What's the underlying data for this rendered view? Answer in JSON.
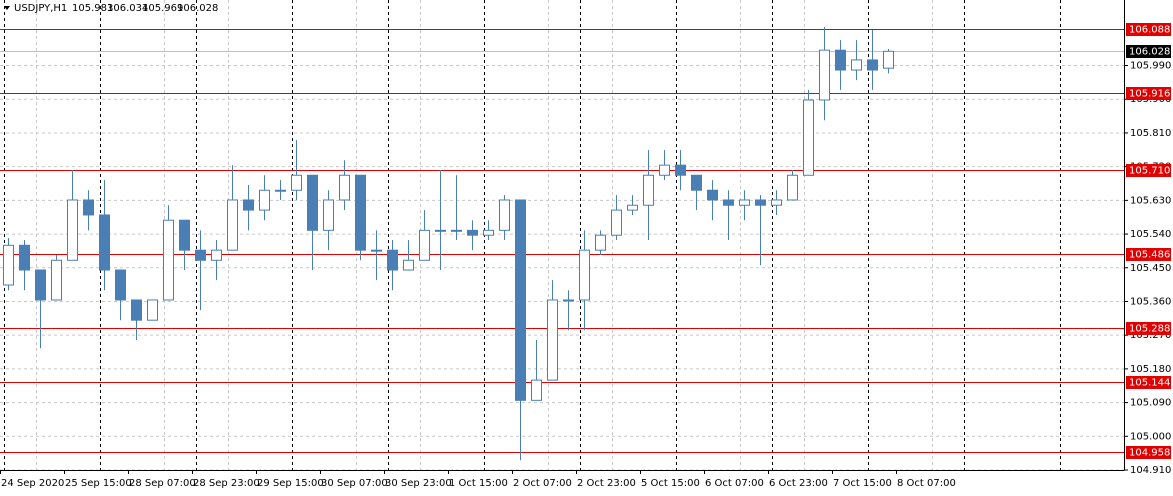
{
  "chart_data": {
    "type": "candlestick",
    "symbol": "USDJPY,H1",
    "ohlc": [
      105.983,
      106.034,
      105.969,
      106.028
    ],
    "color": "#4a7fb5",
    "level_color": "#e00000",
    "last_price": 106.028,
    "ylim": [
      104.91,
      106.165
    ],
    "yticks": [
      {
        "value": 105.99,
        "label": "105.990"
      },
      {
        "value": 105.9,
        "label": "105.900"
      },
      {
        "value": 105.81,
        "label": "105.810"
      },
      {
        "value": 105.72,
        "label": "105.720"
      },
      {
        "value": 105.63,
        "label": "105.630"
      },
      {
        "value": 105.54,
        "label": "105.540"
      },
      {
        "value": 105.45,
        "label": "105.450"
      },
      {
        "value": 105.36,
        "label": "105.360"
      },
      {
        "value": 105.27,
        "label": "105.270"
      },
      {
        "value": 105.18,
        "label": "105.180"
      },
      {
        "value": 105.09,
        "label": "105.090"
      },
      {
        "value": 105,
        "label": "105.000"
      },
      {
        "value": 104.91,
        "label": "104.910"
      }
    ],
    "levels": [
      106.088,
      105.916,
      {
        "value": 105.71,
        "label": "105.710"
      },
      105.486,
      105.288,
      105.144,
      104.958
    ],
    "x_labels": [
      "24 Sep 2020",
      "25 Sep 15:00",
      "28 Sep 07:00",
      "28 Sep 23:00",
      "29 Sep 15:00",
      "30 Sep 07:00",
      "30 Sep 23:00",
      "1 Oct 15:00",
      "2 Oct 07:00",
      "2 Oct 23:00",
      "5 Oct 15:00",
      "6 Oct 07:00",
      "6 Oct 23:00",
      "7 Oct 15:00",
      "8 Oct 07:00"
    ],
    "candles": [
      [
        105.404,
        105.529,
        105.39,
        105.51
      ],
      [
        105.51,
        105.524,
        105.39,
        105.444
      ],
      [
        105.444,
        105.444,
        105.235,
        105.364
      ],
      [
        105.364,
        105.484,
        105.364,
        105.47
      ],
      [
        105.47,
        105.711,
        105.47,
        105.631
      ],
      [
        105.631,
        105.657,
        105.55,
        105.591
      ],
      [
        105.591,
        105.684,
        105.39,
        105.444
      ],
      [
        105.444,
        105.444,
        105.31,
        105.364
      ],
      [
        105.364,
        105.364,
        105.257,
        105.31
      ],
      [
        105.31,
        105.364,
        105.31,
        105.364
      ],
      [
        105.364,
        105.617,
        105.364,
        105.577
      ],
      [
        105.577,
        105.577,
        105.444,
        105.497
      ],
      [
        105.497,
        105.55,
        105.337,
        105.47
      ],
      [
        105.47,
        105.524,
        105.417,
        105.497
      ],
      [
        105.497,
        105.724,
        105.497,
        105.631
      ],
      [
        105.631,
        105.671,
        105.55,
        105.604
      ],
      [
        105.604,
        105.697,
        105.577,
        105.657
      ],
      [
        105.657,
        105.684,
        105.631,
        105.657
      ],
      [
        105.657,
        105.791,
        105.631,
        105.697
      ],
      [
        105.697,
        105.697,
        105.444,
        105.55
      ],
      [
        105.55,
        105.657,
        105.497,
        105.631
      ],
      [
        105.631,
        105.737,
        105.604,
        105.697
      ],
      [
        105.697,
        105.697,
        105.47,
        105.497
      ],
      [
        105.497,
        105.55,
        105.417,
        105.497
      ],
      [
        105.497,
        105.524,
        105.39,
        105.444
      ],
      [
        105.444,
        105.524,
        105.444,
        105.47
      ],
      [
        105.47,
        105.604,
        105.47,
        105.55
      ],
      [
        105.55,
        105.711,
        105.444,
        105.55
      ],
      [
        105.55,
        105.697,
        105.524,
        105.55
      ],
      [
        105.55,
        105.577,
        105.497,
        105.537
      ],
      [
        105.537,
        105.577,
        105.524,
        105.55
      ],
      [
        105.55,
        105.644,
        105.524,
        105.631
      ],
      [
        105.631,
        105.631,
        104.936,
        105.096
      ],
      [
        105.096,
        105.257,
        105.096,
        105.15
      ],
      [
        105.15,
        105.417,
        105.15,
        105.364
      ],
      [
        105.364,
        105.39,
        105.283,
        105.364
      ],
      [
        105.364,
        105.55,
        105.283,
        105.497
      ],
      [
        105.497,
        105.55,
        105.484,
        105.537
      ],
      [
        105.537,
        105.644,
        105.524,
        105.604
      ],
      [
        105.604,
        105.644,
        105.591,
        105.617
      ],
      [
        105.617,
        105.764,
        105.524,
        105.697
      ],
      [
        105.697,
        105.764,
        105.684,
        105.724
      ],
      [
        105.724,
        105.764,
        105.657,
        105.697
      ],
      [
        105.697,
        105.697,
        105.604,
        105.657
      ],
      [
        105.657,
        105.684,
        105.577,
        105.631
      ],
      [
        105.631,
        105.657,
        105.524,
        105.617
      ],
      [
        105.617,
        105.657,
        105.577,
        105.631
      ],
      [
        105.631,
        105.644,
        105.457,
        105.617
      ],
      [
        105.617,
        105.657,
        105.591,
        105.631
      ],
      [
        105.631,
        105.711,
        105.631,
        105.697
      ],
      [
        105.697,
        105.925,
        105.697,
        105.898
      ],
      [
        105.898,
        106.093,
        105.844,
        106.031
      ],
      [
        106.031,
        106.058,
        105.925,
        105.978
      ],
      [
        105.978,
        106.058,
        105.951,
        106.005
      ],
      [
        106.005,
        106.085,
        105.925,
        105.978
      ],
      [
        105.983,
        106.034,
        105.969,
        106.028
      ]
    ]
  }
}
